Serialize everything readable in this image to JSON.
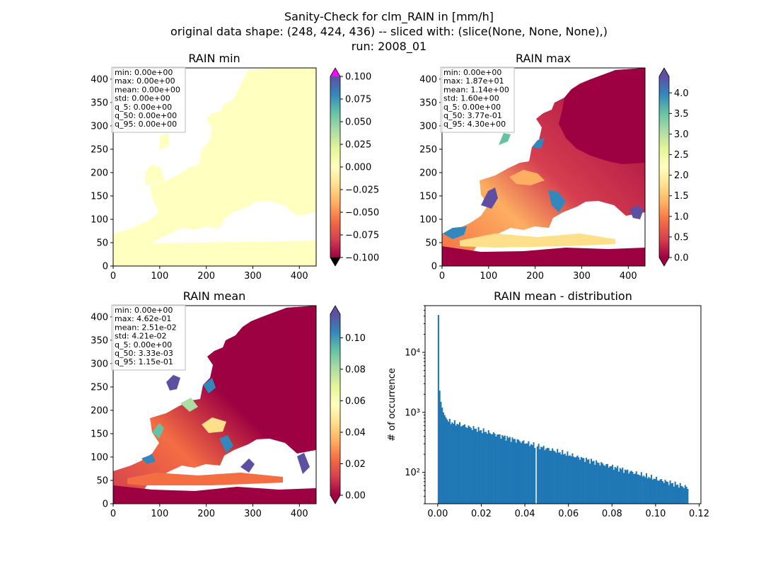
{
  "figure": {
    "title_lines": [
      "Sanity-Check for clm_RAIN in [mm/h]",
      "original data shape: (248, 424, 436) -- sliced with: (slice(None, None, None),)",
      "run: 2008_01"
    ]
  },
  "colors": {
    "cmap": [
      "#9e0142",
      "#d53e4f",
      "#f46d43",
      "#fdae61",
      "#fee08b",
      "#ffffbf",
      "#e6f598",
      "#abdda4",
      "#66c2a5",
      "#3288bd",
      "#5e4fa2"
    ],
    "over_min": "#ff00ff",
    "under_min": "#000000",
    "hist_bar": "#1f77b4",
    "land_min": "#ffffbf"
  },
  "chart_data": [
    {
      "type": "heatmap",
      "title": "RAIN min",
      "x_ticks": [
        "0",
        "100",
        "200",
        "300",
        "400"
      ],
      "y_ticks": [
        "0",
        "50",
        "100",
        "150",
        "200",
        "250",
        "300",
        "350",
        "400"
      ],
      "xlim": [
        0,
        436
      ],
      "ylim": [
        0,
        424
      ],
      "colorbar": {
        "min": -0.1,
        "max": 0.1,
        "ticks": [
          "0.100",
          "0.075",
          "0.050",
          "0.025",
          "0.000",
          "−0.025",
          "−0.050",
          "−0.075",
          "−0.100"
        ],
        "extend": "both"
      },
      "stats": [
        "min: 0.00e+00",
        "max: 0.00e+00",
        "mean: 0.00e+00",
        "std: 0.00e+00",
        "q_5: 0.00e+00",
        "q_50: 0.00e+00",
        "q_95: 0.00e+00"
      ]
    },
    {
      "type": "heatmap",
      "title": "RAIN max",
      "x_ticks": [
        "0",
        "100",
        "200",
        "300",
        "400"
      ],
      "y_ticks": [
        "0",
        "50",
        "100",
        "150",
        "200",
        "250",
        "300",
        "350",
        "400"
      ],
      "xlim": [
        0,
        436
      ],
      "ylim": [
        0,
        424
      ],
      "colorbar": {
        "min": 0.0,
        "max": 4.4,
        "ticks": [
          "4.0",
          "3.5",
          "3.0",
          "2.5",
          "2.0",
          "1.5",
          "1.0",
          "0.5",
          "0.0"
        ],
        "extend": "both"
      },
      "stats": [
        "min: 0.00e+00",
        "max: 1.87e+01",
        "mean: 1.14e+00",
        "std: 1.60e+00",
        "q_5: 0.00e+00",
        "q_50: 3.77e-01",
        "q_95: 4.30e+00"
      ]
    },
    {
      "type": "heatmap",
      "title": "RAIN mean",
      "x_ticks": [
        "0",
        "100",
        "200",
        "300",
        "400"
      ],
      "y_ticks": [
        "0",
        "50",
        "100",
        "150",
        "200",
        "250",
        "300",
        "350",
        "400"
      ],
      "xlim": [
        0,
        436
      ],
      "ylim": [
        0,
        424
      ],
      "colorbar": {
        "min": 0.0,
        "max": 0.115,
        "ticks": [
          "0.10",
          "0.08",
          "0.06",
          "0.04",
          "0.02",
          "0.00"
        ],
        "extend": "both"
      },
      "stats": [
        "min: 0.00e+00",
        "max: 4.62e-01",
        "mean: 2.51e-02",
        "std: 4.21e-02",
        "q_5: 0.00e+00",
        "q_50: 3.33e-03",
        "q_95: 1.15e-01"
      ]
    },
    {
      "type": "bar",
      "title": "RAIN mean - distribution",
      "ylabel": "# of occurrence",
      "xlabel": "",
      "y_scale": "log",
      "xlim": [
        -0.0058,
        0.1208
      ],
      "ylim": [
        30,
        60000
      ],
      "x_ticks": [
        "0.00",
        "0.02",
        "0.04",
        "0.06",
        "0.08",
        "0.10",
        "0.12"
      ],
      "y_ticks": [
        "10²",
        "10³",
        "10⁴"
      ],
      "bins": {
        "start": 0.0,
        "end": 0.115,
        "count": 200
      },
      "head_values": [
        42000,
        2300,
        1500,
        1200,
        1000,
        900,
        820,
        760,
        700
      ],
      "tail_from": 700,
      "tail_to": 55,
      "gap_at": 0.0448
    }
  ]
}
